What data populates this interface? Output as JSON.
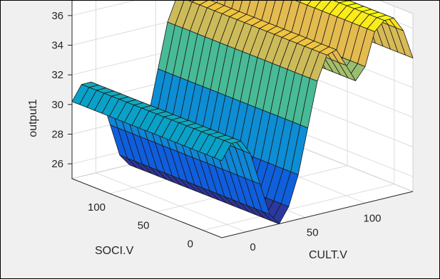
{
  "chart_data": {
    "type": "surface",
    "title": "",
    "xlabel": "SOCI.V",
    "ylabel": "CULT.V",
    "zlabel": "output1",
    "x_ticks": [
      0,
      50,
      100
    ],
    "y_ticks": [
      0,
      50,
      100
    ],
    "z_ticks": [
      26,
      28,
      30,
      32,
      34,
      36
    ],
    "xlim": [
      -20,
      140
    ],
    "ylim": [
      -20,
      140
    ],
    "zlim": [
      25,
      37
    ],
    "grid": true,
    "colormap": "parula",
    "x": [
      -20,
      -12,
      -4,
      4,
      12,
      20,
      28,
      36,
      44,
      52,
      60,
      68,
      76,
      84,
      92,
      100,
      108,
      116,
      124,
      132,
      140
    ],
    "y": [
      -20,
      -12,
      -4,
      4,
      12,
      20,
      28,
      36,
      44,
      52,
      60,
      68,
      76,
      84,
      92,
      100,
      108,
      116,
      124,
      132,
      140
    ],
    "z_rows_by_y": [
      [
        30.2,
        30.2,
        30.2,
        30.2,
        30.2,
        30.2,
        30.2,
        30.2,
        30.2,
        30.2,
        30.2,
        30.2,
        30.2,
        30.2,
        30.2,
        30.2,
        30.2,
        30.2,
        30.2,
        30.2,
        30.2
      ],
      [
        31.2,
        31.2,
        31.2,
        31.2,
        31.2,
        31.2,
        31.2,
        31.2,
        31.2,
        31.2,
        31.2,
        31.2,
        31.2,
        31.2,
        31.2,
        31.2,
        31.2,
        31.2,
        31.2,
        31.2,
        31.2
      ],
      [
        31.2,
        31.2,
        31.2,
        31.2,
        31.2,
        31.2,
        31.2,
        31.2,
        31.2,
        31.2,
        31.2,
        31.2,
        31.2,
        31.2,
        31.2,
        31.2,
        31.2,
        31.2,
        31.2,
        31.2,
        31.2
      ],
      [
        30.2,
        30.2,
        30.2,
        30.2,
        30.2,
        30.2,
        30.2,
        30.2,
        30.2,
        30.2,
        30.2,
        30.2,
        30.2,
        30.2,
        30.2,
        30.2,
        30.2,
        30.2,
        30.2,
        30.2,
        30.2
      ],
      [
        28.0,
        28.0,
        28.0,
        28.0,
        28.0,
        28.0,
        28.0,
        28.0,
        28.0,
        28.0,
        28.0,
        28.0,
        28.0,
        28.0,
        28.0,
        28.0,
        28.0,
        28.0,
        28.0,
        28.0,
        28.0
      ],
      [
        25.8,
        25.8,
        25.8,
        25.8,
        25.8,
        25.8,
        25.8,
        25.8,
        25.8,
        25.8,
        25.8,
        25.8,
        25.8,
        25.8,
        25.8,
        25.8,
        25.8,
        25.8,
        25.8,
        25.8,
        25.8
      ],
      [
        25.0,
        25.0,
        25.0,
        25.0,
        25.0,
        25.0,
        25.0,
        25.0,
        25.0,
        25.0,
        25.0,
        25.0,
        25.0,
        25.0,
        25.0,
        25.0,
        25.0,
        25.0,
        25.0,
        25.0,
        25.0
      ],
      [
        26.0,
        26.0,
        26.0,
        26.0,
        26.0,
        26.0,
        26.0,
        26.0,
        26.0,
        26.0,
        26.0,
        26.0,
        26.0,
        26.0,
        26.0,
        26.0,
        26.0,
        26.0,
        26.0,
        26.0,
        26.0
      ],
      [
        28.0,
        28.0,
        28.0,
        28.0,
        28.0,
        28.0,
        28.0,
        28.0,
        28.0,
        28.0,
        28.0,
        28.0,
        28.0,
        28.0,
        28.0,
        28.0,
        28.0,
        28.0,
        28.0,
        28.0,
        28.0
      ],
      [
        31.0,
        31.0,
        31.0,
        31.0,
        31.0,
        31.0,
        31.0,
        31.0,
        31.0,
        31.0,
        31.0,
        31.0,
        31.0,
        31.0,
        31.0,
        31.0,
        31.0,
        31.0,
        31.0,
        31.0,
        31.0
      ],
      [
        34.0,
        34.0,
        34.0,
        34.0,
        34.0,
        34.0,
        34.0,
        34.0,
        34.0,
        34.0,
        34.0,
        34.0,
        34.0,
        34.0,
        34.0,
        34.0,
        34.0,
        34.0,
        34.0,
        34.0,
        34.0
      ],
      [
        35.6,
        35.6,
        35.6,
        35.6,
        35.6,
        35.6,
        35.6,
        35.6,
        35.6,
        35.6,
        35.6,
        35.6,
        35.6,
        35.6,
        35.6,
        35.6,
        35.6,
        35.6,
        35.6,
        35.6,
        35.6
      ],
      [
        35.8,
        35.8,
        35.8,
        35.8,
        35.8,
        35.8,
        35.8,
        35.8,
        35.8,
        35.8,
        35.8,
        35.8,
        35.8,
        35.8,
        35.8,
        35.8,
        35.8,
        35.8,
        35.8,
        35.8,
        35.8
      ],
      [
        34.6,
        34.6,
        34.6,
        34.6,
        34.6,
        34.6,
        34.6,
        34.6,
        34.6,
        34.6,
        34.6,
        34.6,
        34.6,
        34.6,
        34.6,
        34.6,
        34.6,
        34.6,
        34.6,
        34.6,
        34.6
      ],
      [
        33.4,
        33.4,
        33.4,
        33.4,
        33.4,
        33.4,
        33.4,
        33.4,
        33.4,
        33.4,
        33.4,
        33.4,
        33.4,
        33.4,
        33.4,
        33.4,
        33.4,
        33.4,
        33.4,
        33.4,
        33.4
      ],
      [
        34.2,
        34.2,
        34.2,
        34.2,
        34.2,
        34.2,
        34.2,
        34.2,
        34.2,
        34.2,
        34.2,
        34.2,
        34.2,
        34.2,
        34.2,
        34.2,
        34.2,
        34.2,
        34.2,
        34.2,
        34.2
      ],
      [
        36.4,
        36.4,
        36.4,
        36.4,
        36.4,
        36.4,
        36.4,
        36.4,
        36.4,
        36.4,
        36.4,
        36.4,
        36.4,
        36.4,
        36.4,
        36.4,
        36.4,
        36.4,
        36.4,
        36.4,
        36.4
      ],
      [
        37.0,
        37.0,
        37.0,
        37.0,
        37.0,
        37.0,
        37.0,
        37.0,
        37.0,
        37.0,
        37.0,
        37.0,
        37.0,
        37.0,
        37.0,
        37.0,
        37.0,
        37.0,
        37.0,
        37.0,
        37.0
      ],
      [
        37.0,
        37.0,
        37.0,
        37.0,
        37.0,
        37.0,
        37.0,
        37.0,
        37.0,
        37.0,
        37.0,
        37.0,
        37.0,
        37.0,
        37.0,
        37.0,
        37.0,
        37.0,
        37.0,
        37.0,
        37.0
      ],
      [
        36.0,
        36.0,
        36.0,
        36.0,
        36.0,
        36.0,
        36.0,
        36.0,
        36.0,
        36.0,
        36.0,
        36.0,
        36.0,
        36.0,
        36.0,
        36.0,
        36.0,
        36.0,
        36.0,
        36.0,
        36.0
      ],
      [
        34.0,
        34.0,
        34.0,
        34.0,
        34.0,
        34.0,
        34.0,
        34.0,
        34.0,
        34.0,
        34.0,
        34.0,
        34.0,
        34.0,
        34.0,
        34.0,
        34.0,
        34.0,
        34.0,
        34.0,
        34.0
      ]
    ]
  }
}
